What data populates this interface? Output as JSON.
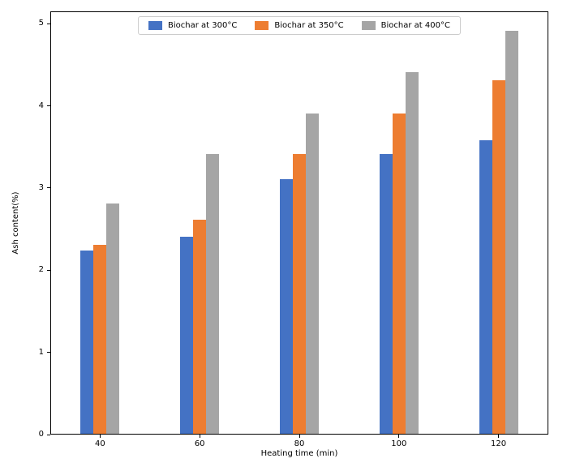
{
  "chart_data": {
    "type": "bar",
    "title": "",
    "xlabel": "Heating time (min)",
    "ylabel": "Ash content(%)",
    "categories": [
      "40",
      "60",
      "80",
      "100",
      "120"
    ],
    "series": [
      {
        "name": "Biochar at 300°C",
        "color": "#4472c4",
        "values": [
          2.23,
          2.4,
          3.1,
          3.4,
          3.57
        ]
      },
      {
        "name": "Biochar at 350°C",
        "color": "#ed7d31",
        "values": [
          2.3,
          2.6,
          3.4,
          3.9,
          4.3
        ]
      },
      {
        "name": "Biochar at 400°C",
        "color": "#a5a5a5",
        "values": [
          2.8,
          3.4,
          3.9,
          4.4,
          4.9
        ]
      }
    ],
    "ylim": [
      0,
      5.15
    ],
    "yticks": [
      0,
      1,
      2,
      3,
      4,
      5
    ],
    "grid": false,
    "legend_position": "upper center",
    "background_color": "#ffffff",
    "spine_color": "#000000"
  }
}
